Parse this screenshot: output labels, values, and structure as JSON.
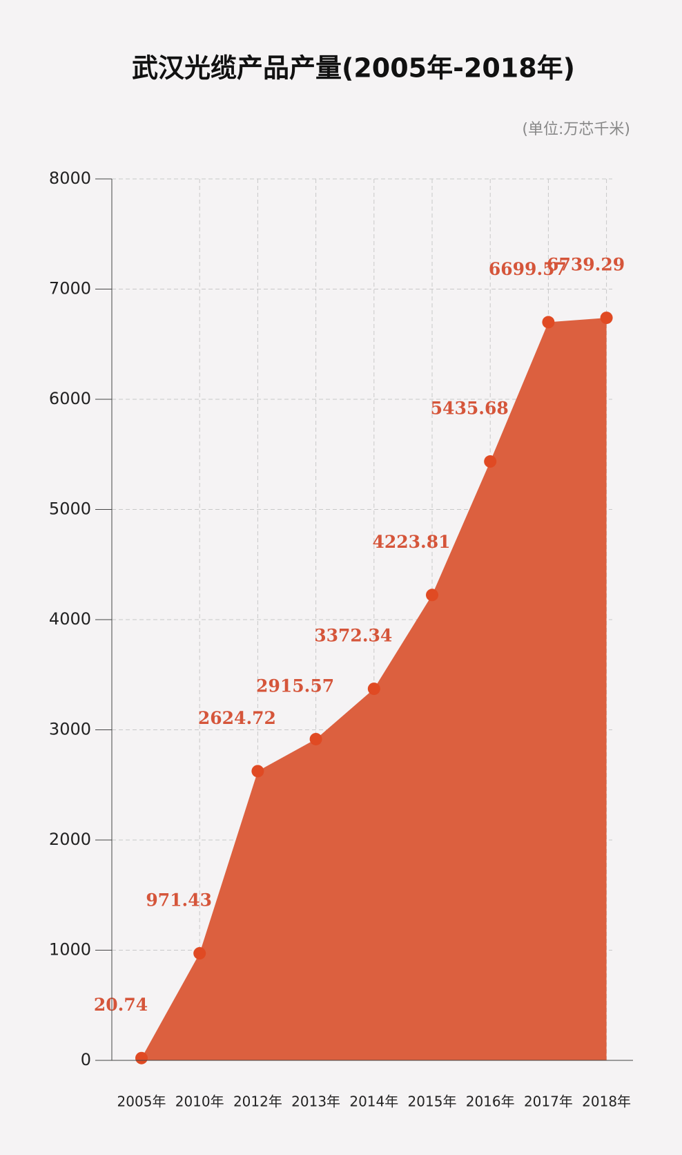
{
  "chart_data": {
    "type": "area",
    "title": "武汉光缆产品产量(2005年-2018年)",
    "subtitle": "(单位:万芯千米)",
    "categories": [
      "2005年",
      "2010年",
      "2012年",
      "2013年",
      "2014年",
      "2015年",
      "2016年",
      "2017年",
      "2018年"
    ],
    "values": [
      20.74,
      971.43,
      2624.72,
      2915.57,
      3372.34,
      4223.81,
      5435.68,
      6699.57,
      6739.29
    ],
    "color": "#dc603f",
    "marker_color": "#e04a23",
    "label_color": "#d5553a",
    "ylim": [
      0,
      8000
    ],
    "yticks": [
      0,
      1000,
      2000,
      3000,
      4000,
      5000,
      6000,
      7000,
      8000
    ],
    "grid": true
  }
}
